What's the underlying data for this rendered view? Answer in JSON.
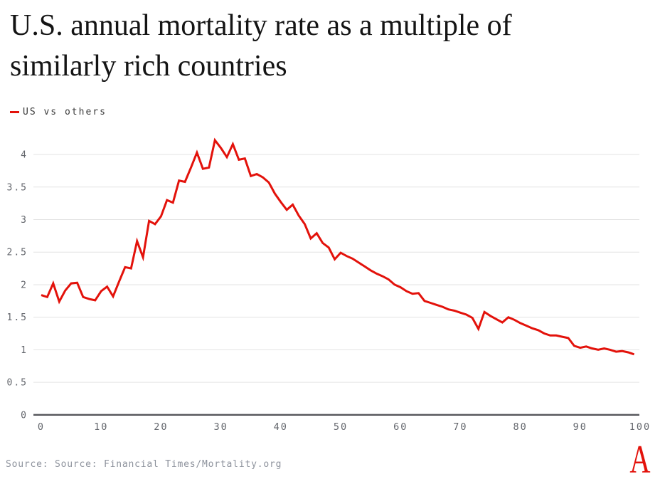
{
  "title": {
    "line1": "U.S. annual mortality rate as a multiple of",
    "line2": "similarly rich countries"
  },
  "legend": {
    "label": "US vs others"
  },
  "footer": {
    "source_text": "Source: Source: Financial Times/Mortality.org",
    "logo_letter": "A"
  },
  "colors": {
    "line_red": "#e3120b",
    "gridline": "#e3e3e3",
    "zero_axis": "#55565b",
    "axis_label": "#63666c"
  },
  "chart_data": {
    "type": "line",
    "title": "U.S. annual mortality rate as a multiple of similarly rich countries",
    "xlabel": "",
    "ylabel": "",
    "x_start": 0,
    "x_step": 1,
    "xlim": [
      0,
      100
    ],
    "ylim": [
      0,
      4.4
    ],
    "x_ticks": [
      0,
      10,
      20,
      30,
      40,
      50,
      60,
      70,
      80,
      90,
      100
    ],
    "y_ticks": [
      0,
      0.5,
      1,
      1.5,
      2,
      2.5,
      3,
      3.5,
      4
    ],
    "grid": "horizontal",
    "legend_position": "top-left",
    "series": [
      {
        "name": "US vs others",
        "color": "#e3120b",
        "values": [
          1.84,
          1.81,
          2.02,
          1.74,
          1.91,
          2.02,
          2.03,
          1.81,
          1.78,
          1.76,
          1.9,
          1.97,
          1.82,
          2.05,
          2.27,
          2.25,
          2.67,
          2.42,
          2.98,
          2.93,
          3.05,
          3.3,
          3.26,
          3.6,
          3.58,
          3.8,
          4.03,
          3.78,
          3.8,
          4.22,
          4.1,
          3.96,
          4.16,
          3.92,
          3.94,
          3.67,
          3.7,
          3.65,
          3.57,
          3.4,
          3.27,
          3.15,
          3.23,
          3.06,
          2.93,
          2.71,
          2.79,
          2.64,
          2.57,
          2.39,
          2.49,
          2.44,
          2.4,
          2.34,
          2.28,
          2.22,
          2.17,
          2.13,
          2.08,
          2.0,
          1.96,
          1.9,
          1.86,
          1.87,
          1.75,
          1.72,
          1.69,
          1.66,
          1.62,
          1.6,
          1.57,
          1.54,
          1.49,
          1.32,
          1.58,
          1.52,
          1.47,
          1.42,
          1.5,
          1.46,
          1.41,
          1.37,
          1.33,
          1.3,
          1.25,
          1.22,
          1.22,
          1.2,
          1.18,
          1.06,
          1.03,
          1.05,
          1.02,
          1.0,
          1.02,
          1.0,
          0.97,
          0.98,
          0.96,
          0.93
        ]
      }
    ]
  }
}
